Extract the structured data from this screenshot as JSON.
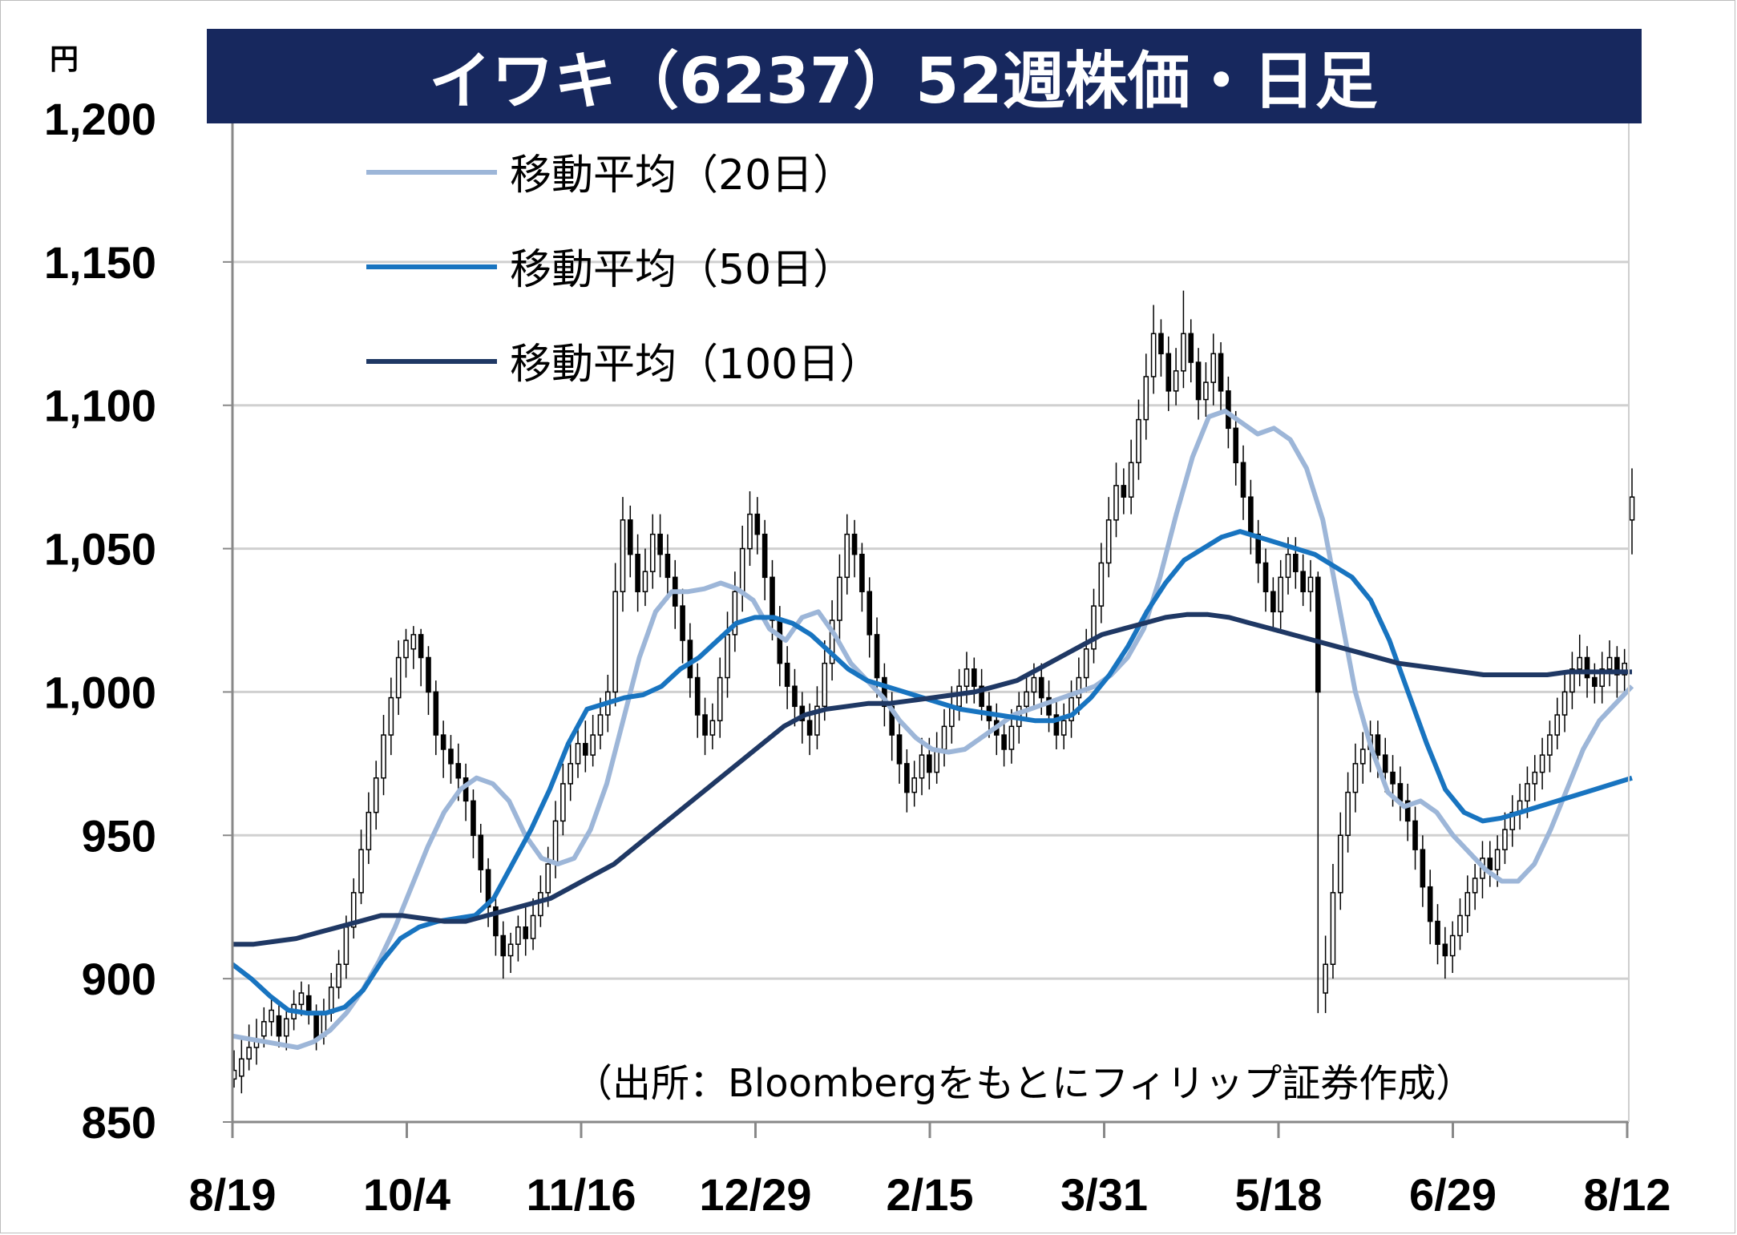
{
  "chart_data": {
    "type": "line",
    "title": "イワキ（6237）52週株価・日足",
    "unit": "円",
    "source": "（出所：Bloombergをもとにフィリップ証券作成）",
    "y_ticks": [
      "1,200",
      "1,150",
      "1,100",
      "1,050",
      "1,000",
      "950",
      "900",
      "850"
    ],
    "y_tick_values": [
      1200,
      1150,
      1100,
      1050,
      1000,
      950,
      900,
      850
    ],
    "ylim": [
      850,
      1200
    ],
    "x_ticks": [
      "8/19",
      "10/4",
      "11/16",
      "12/29",
      "2/15",
      "3/31",
      "5/18",
      "6/29",
      "8/12"
    ],
    "grid": true,
    "legend_position": "top-left",
    "candles": [
      [
        865,
        868,
        875,
        862
      ],
      [
        866,
        872,
        880,
        860
      ],
      [
        872,
        876,
        884,
        868
      ],
      [
        876,
        879,
        886,
        870
      ],
      [
        880,
        885,
        890,
        876
      ],
      [
        885,
        889,
        893,
        880
      ],
      [
        887,
        880,
        892,
        876
      ],
      [
        880,
        886,
        890,
        875
      ],
      [
        886,
        891,
        896,
        882
      ],
      [
        891,
        895,
        899,
        887
      ],
      [
        894,
        889,
        898,
        884
      ],
      [
        888,
        879,
        891,
        875
      ],
      [
        880,
        888,
        893,
        877
      ],
      [
        888,
        897,
        902,
        885
      ],
      [
        897,
        905,
        910,
        893
      ],
      [
        905,
        918,
        922,
        900
      ],
      [
        918,
        930,
        935,
        914
      ],
      [
        930,
        945,
        952,
        926
      ],
      [
        945,
        958,
        965,
        940
      ],
      [
        958,
        970,
        976,
        952
      ],
      [
        970,
        985,
        992,
        964
      ],
      [
        985,
        998,
        1005,
        978
      ],
      [
        998,
        1012,
        1018,
        992
      ],
      [
        1012,
        1018,
        1022,
        1005
      ],
      [
        1015,
        1020,
        1023,
        1008
      ],
      [
        1020,
        1012,
        1022,
        1002
      ],
      [
        1012,
        1000,
        1016,
        992
      ],
      [
        1000,
        985,
        1004,
        978
      ],
      [
        985,
        980,
        990,
        970
      ],
      [
        980,
        975,
        985,
        968
      ],
      [
        975,
        970,
        982,
        962
      ],
      [
        970,
        962,
        975,
        955
      ],
      [
        962,
        950,
        966,
        942
      ],
      [
        950,
        938,
        954,
        930
      ],
      [
        938,
        925,
        942,
        918
      ],
      [
        925,
        915,
        930,
        908
      ],
      [
        915,
        908,
        920,
        900
      ],
      [
        908,
        912,
        916,
        902
      ],
      [
        912,
        918,
        922,
        906
      ],
      [
        918,
        914,
        925,
        908
      ],
      [
        914,
        922,
        928,
        910
      ],
      [
        922,
        930,
        936,
        918
      ],
      [
        930,
        940,
        946,
        925
      ],
      [
        940,
        955,
        962,
        935
      ],
      [
        955,
        968,
        975,
        950
      ],
      [
        968,
        975,
        982,
        962
      ],
      [
        975,
        982,
        988,
        970
      ],
      [
        982,
        978,
        990,
        972
      ],
      [
        978,
        985,
        992,
        974
      ],
      [
        985,
        992,
        998,
        980
      ],
      [
        992,
        1000,
        1006,
        986
      ],
      [
        1000,
        1035,
        1045,
        995
      ],
      [
        1035,
        1060,
        1068,
        1028
      ],
      [
        1060,
        1048,
        1065,
        1040
      ],
      [
        1048,
        1035,
        1055,
        1028
      ],
      [
        1035,
        1042,
        1050,
        1030
      ],
      [
        1042,
        1055,
        1062,
        1036
      ],
      [
        1055,
        1048,
        1062,
        1040
      ],
      [
        1048,
        1040,
        1055,
        1032
      ],
      [
        1040,
        1030,
        1046,
        1022
      ],
      [
        1030,
        1018,
        1036,
        1010
      ],
      [
        1018,
        1005,
        1024,
        998
      ],
      [
        1005,
        992,
        1010,
        984
      ],
      [
        992,
        985,
        998,
        978
      ],
      [
        985,
        990,
        996,
        980
      ],
      [
        990,
        1005,
        1012,
        984
      ],
      [
        1005,
        1020,
        1028,
        998
      ],
      [
        1020,
        1035,
        1042,
        1014
      ],
      [
        1035,
        1050,
        1058,
        1028
      ],
      [
        1050,
        1062,
        1070,
        1044
      ],
      [
        1062,
        1055,
        1068,
        1048
      ],
      [
        1055,
        1040,
        1060,
        1032
      ],
      [
        1040,
        1025,
        1046,
        1018
      ],
      [
        1025,
        1010,
        1030,
        1002
      ],
      [
        1010,
        1002,
        1016,
        994
      ],
      [
        1002,
        995,
        1008,
        988
      ],
      [
        995,
        990,
        1000,
        982
      ],
      [
        990,
        985,
        996,
        978
      ],
      [
        985,
        995,
        1002,
        980
      ],
      [
        995,
        1010,
        1018,
        990
      ],
      [
        1010,
        1025,
        1032,
        1004
      ],
      [
        1025,
        1040,
        1048,
        1018
      ],
      [
        1040,
        1055,
        1062,
        1034
      ],
      [
        1055,
        1048,
        1060,
        1040
      ],
      [
        1048,
        1035,
        1052,
        1028
      ],
      [
        1035,
        1020,
        1040,
        1012
      ],
      [
        1020,
        1005,
        1026,
        998
      ],
      [
        1005,
        995,
        1010,
        988
      ],
      [
        995,
        985,
        1000,
        976
      ],
      [
        985,
        975,
        990,
        968
      ],
      [
        975,
        965,
        980,
        958
      ],
      [
        965,
        970,
        976,
        960
      ],
      [
        970,
        978,
        984,
        964
      ],
      [
        978,
        972,
        984,
        966
      ],
      [
        972,
        980,
        986,
        968
      ],
      [
        980,
        988,
        994,
        974
      ],
      [
        988,
        995,
        1002,
        982
      ],
      [
        995,
        1002,
        1008,
        990
      ],
      [
        1002,
        1008,
        1014,
        996
      ],
      [
        1008,
        1002,
        1012,
        996
      ],
      [
        1002,
        995,
        1008,
        990
      ],
      [
        995,
        990,
        1000,
        984
      ],
      [
        990,
        985,
        996,
        978
      ],
      [
        985,
        980,
        990,
        974
      ],
      [
        980,
        988,
        994,
        975
      ],
      [
        988,
        995,
        1000,
        982
      ],
      [
        995,
        1000,
        1006,
        990
      ],
      [
        1000,
        1005,
        1010,
        994
      ],
      [
        1005,
        998,
        1010,
        992
      ],
      [
        998,
        992,
        1004,
        986
      ],
      [
        992,
        985,
        998,
        980
      ],
      [
        985,
        990,
        996,
        980
      ],
      [
        990,
        998,
        1004,
        984
      ],
      [
        998,
        1005,
        1012,
        992
      ],
      [
        1005,
        1015,
        1022,
        1000
      ],
      [
        1015,
        1030,
        1036,
        1010
      ],
      [
        1030,
        1045,
        1052,
        1024
      ],
      [
        1045,
        1060,
        1068,
        1040
      ],
      [
        1060,
        1072,
        1080,
        1054
      ],
      [
        1072,
        1068,
        1078,
        1062
      ],
      [
        1068,
        1080,
        1088,
        1062
      ],
      [
        1080,
        1095,
        1102,
        1074
      ],
      [
        1095,
        1110,
        1118,
        1088
      ],
      [
        1110,
        1125,
        1135,
        1104
      ],
      [
        1125,
        1118,
        1130,
        1110
      ],
      [
        1118,
        1105,
        1124,
        1098
      ],
      [
        1105,
        1112,
        1120,
        1100
      ],
      [
        1112,
        1125,
        1140,
        1106
      ],
      [
        1125,
        1115,
        1130,
        1108
      ],
      [
        1115,
        1102,
        1120,
        1095
      ],
      [
        1102,
        1108,
        1115,
        1096
      ],
      [
        1108,
        1118,
        1125,
        1100
      ],
      [
        1118,
        1105,
        1122,
        1098
      ],
      [
        1105,
        1092,
        1110,
        1085
      ],
      [
        1092,
        1080,
        1098,
        1072
      ],
      [
        1080,
        1068,
        1086,
        1060
      ],
      [
        1068,
        1055,
        1074,
        1048
      ],
      [
        1055,
        1045,
        1060,
        1038
      ],
      [
        1045,
        1035,
        1050,
        1028
      ],
      [
        1035,
        1028,
        1040,
        1022
      ],
      [
        1028,
        1040,
        1046,
        1022
      ],
      [
        1040,
        1048,
        1054,
        1034
      ],
      [
        1048,
        1042,
        1054,
        1036
      ],
      [
        1042,
        1035,
        1048,
        1030
      ],
      [
        1035,
        1040,
        1046,
        1028
      ],
      [
        1040,
        1000,
        1042,
        888
      ],
      [
        895,
        905,
        915,
        888
      ],
      [
        905,
        930,
        940,
        900
      ],
      [
        930,
        950,
        958,
        924
      ],
      [
        950,
        965,
        972,
        944
      ],
      [
        965,
        975,
        982,
        958
      ],
      [
        975,
        980,
        986,
        968
      ],
      [
        980,
        985,
        990,
        972
      ],
      [
        985,
        978,
        990,
        970
      ],
      [
        978,
        972,
        984,
        965
      ],
      [
        972,
        968,
        978,
        960
      ],
      [
        968,
        962,
        974,
        955
      ],
      [
        962,
        955,
        968,
        948
      ],
      [
        955,
        945,
        960,
        938
      ],
      [
        945,
        932,
        950,
        925
      ],
      [
        932,
        920,
        938,
        912
      ],
      [
        920,
        912,
        926,
        905
      ],
      [
        912,
        908,
        918,
        900
      ],
      [
        908,
        915,
        920,
        902
      ],
      [
        915,
        922,
        928,
        910
      ],
      [
        922,
        930,
        936,
        916
      ],
      [
        930,
        935,
        940,
        924
      ],
      [
        935,
        942,
        948,
        928
      ],
      [
        942,
        938,
        948,
        932
      ],
      [
        938,
        945,
        950,
        932
      ],
      [
        945,
        952,
        958,
        940
      ],
      [
        952,
        958,
        964,
        946
      ],
      [
        958,
        962,
        968,
        952
      ],
      [
        962,
        968,
        974,
        956
      ],
      [
        968,
        972,
        978,
        962
      ],
      [
        972,
        978,
        984,
        966
      ],
      [
        978,
        985,
        990,
        972
      ],
      [
        985,
        992,
        998,
        980
      ],
      [
        992,
        1000,
        1006,
        986
      ],
      [
        1000,
        1008,
        1014,
        994
      ],
      [
        1008,
        1012,
        1020,
        1002
      ],
      [
        1012,
        1005,
        1016,
        998
      ],
      [
        1005,
        1002,
        1010,
        996
      ],
      [
        1002,
        1008,
        1014,
        996
      ],
      [
        1008,
        1012,
        1018,
        1002
      ],
      [
        1012,
        1006,
        1016,
        998
      ],
      [
        1006,
        1010,
        1015,
        1000
      ],
      [
        1060,
        1068,
        1078,
        1048
      ]
    ],
    "series": [
      {
        "name": "移動平均（20日）",
        "color": "#9db6d8",
        "values": [
          880,
          879,
          878,
          877,
          876,
          878,
          882,
          888,
          896,
          906,
          918,
          932,
          946,
          958,
          966,
          970,
          968,
          962,
          950,
          942,
          940,
          942,
          952,
          968,
          990,
          1012,
          1028,
          1035,
          1035,
          1036,
          1038,
          1036,
          1032,
          1022,
          1018,
          1026,
          1028,
          1020,
          1010,
          1004,
          998,
          990,
          984,
          980,
          979,
          980,
          984,
          988,
          992,
          994,
          996,
          998,
          1000,
          1002,
          1006,
          1012,
          1022,
          1040,
          1062,
          1082,
          1096,
          1098,
          1094,
          1090,
          1092,
          1088,
          1078,
          1060,
          1030,
          1000,
          980,
          965,
          960,
          962,
          958,
          950,
          944,
          938,
          934,
          934,
          940,
          952,
          966,
          980,
          990,
          996,
          1002
        ]
      },
      {
        "name": "移動平均（50日）",
        "color": "#1874c0",
        "values": [
          905,
          900,
          894,
          889,
          888,
          888,
          890,
          896,
          906,
          914,
          918,
          920,
          921,
          922,
          928,
          940,
          952,
          966,
          982,
          994,
          996,
          998,
          999,
          1002,
          1008,
          1012,
          1018,
          1024,
          1026,
          1026,
          1024,
          1020,
          1014,
          1008,
          1004,
          1002,
          1000,
          998,
          996,
          994,
          993,
          992,
          991,
          990,
          990,
          992,
          998,
          1006,
          1016,
          1028,
          1038,
          1046,
          1050,
          1054,
          1056,
          1054,
          1052,
          1050,
          1048,
          1044,
          1040,
          1032,
          1018,
          1000,
          982,
          966,
          958,
          955,
          956,
          958,
          960,
          962,
          964,
          966,
          968,
          970
        ]
      },
      {
        "name": "移動平均（100日）",
        "color": "#1f3864",
        "values": [
          912,
          912,
          913,
          914,
          916,
          918,
          920,
          922,
          922,
          921,
          920,
          920,
          922,
          924,
          926,
          928,
          932,
          936,
          940,
          946,
          952,
          958,
          964,
          970,
          976,
          982,
          988,
          992,
          994,
          995,
          996,
          996,
          997,
          998,
          999,
          1000,
          1002,
          1004,
          1008,
          1012,
          1016,
          1020,
          1022,
          1024,
          1026,
          1027,
          1027,
          1026,
          1024,
          1022,
          1020,
          1018,
          1016,
          1014,
          1012,
          1010,
          1009,
          1008,
          1007,
          1006,
          1006,
          1006,
          1006,
          1007,
          1007,
          1007,
          1007
        ]
      }
    ]
  }
}
